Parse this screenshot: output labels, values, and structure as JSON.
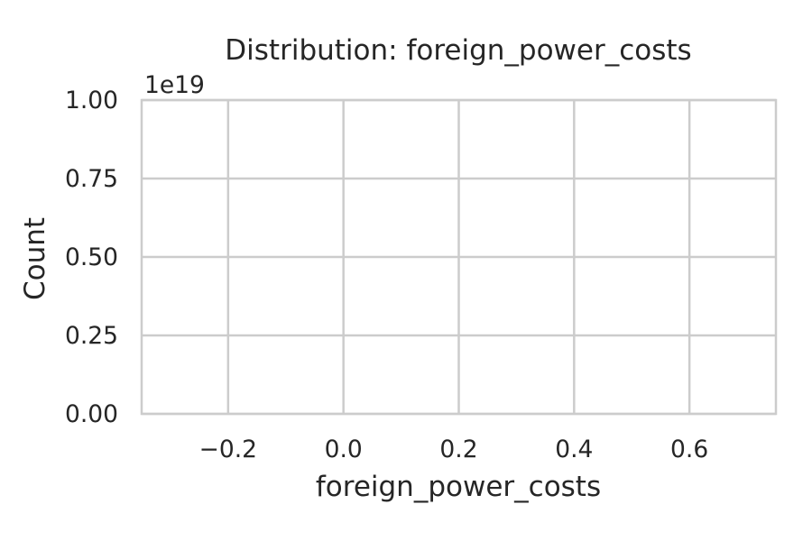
{
  "chart_data": {
    "type": "bar",
    "title": "Distribution: foreign_power_costs",
    "xlabel": "foreign_power_costs",
    "ylabel": "Count",
    "y_offset_text": "1e19",
    "xlim": [
      -0.35,
      0.75
    ],
    "ylim": [
      0,
      1.0
    ],
    "x_ticks": [
      {
        "value": -0.2,
        "label": "−0.2"
      },
      {
        "value": 0.0,
        "label": "0.0"
      },
      {
        "value": 0.2,
        "label": "0.2"
      },
      {
        "value": 0.4,
        "label": "0.4"
      },
      {
        "value": 0.6,
        "label": "0.6"
      }
    ],
    "y_ticks": [
      {
        "value": 0.0,
        "label": "0.00"
      },
      {
        "value": 0.25,
        "label": "0.25"
      },
      {
        "value": 0.5,
        "label": "0.50"
      },
      {
        "value": 0.75,
        "label": "0.75"
      },
      {
        "value": 1.0,
        "label": "1.00"
      }
    ],
    "bins": [],
    "grid": true,
    "colors": {
      "grid": "#cccccc",
      "spine": "#cccccc",
      "text": "#262626",
      "background": "#ffffff"
    }
  }
}
